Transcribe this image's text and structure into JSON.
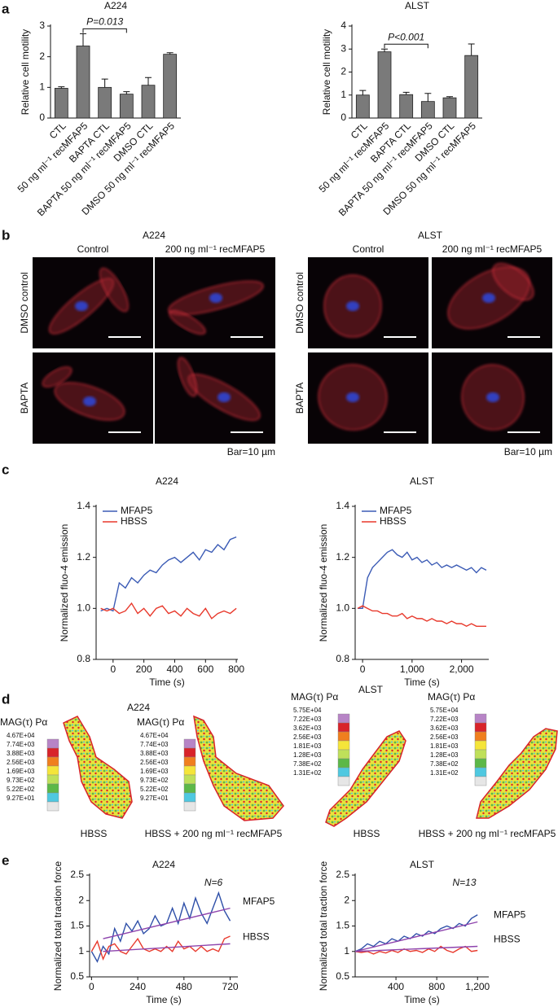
{
  "panel_labels": [
    "a",
    "b",
    "c",
    "d",
    "e"
  ],
  "chart_data": [
    {
      "type": "bar",
      "title": "A224",
      "ylabel": "Relative cell motility",
      "categories": [
        "CTL",
        "50 ng ml⁻¹ recMFAP5",
        "BAPTA CTL",
        "BAPTA 50 ng ml⁻¹ recMFAP5",
        "DMSO CTL",
        "DMSO 50 ng ml⁻¹ recMFAP5"
      ],
      "values": [
        0.97,
        2.35,
        1.0,
        0.78,
        1.07,
        2.08
      ],
      "errors": [
        0.05,
        0.4,
        0.27,
        0.08,
        0.25,
        0.05
      ],
      "color": "#7a7a7a",
      "ylim": [
        0,
        3
      ],
      "yticks": [
        0,
        1,
        2,
        3
      ],
      "annotation": "P=0.013"
    },
    {
      "type": "bar",
      "title": "ALST",
      "ylabel": "Relative cell motility",
      "categories": [
        "CTL",
        "50 ng ml⁻¹ recMFAP5",
        "BAPTA CTL",
        "BAPTA 50 ng ml⁻¹ recMFAP5",
        "DMSO CTL",
        "DMSO 50 ng ml⁻¹ recMFAP5"
      ],
      "values": [
        1.0,
        2.88,
        1.02,
        0.72,
        0.88,
        2.72
      ],
      "errors": [
        0.2,
        0.12,
        0.1,
        0.35,
        0.05,
        0.5
      ],
      "color": "#7a7a7a",
      "ylim": [
        0,
        4
      ],
      "yticks": [
        0,
        1,
        2,
        3,
        4
      ],
      "annotation": "P<0.001"
    },
    {
      "type": "line",
      "title": "A224",
      "xlabel": "Time (s)",
      "ylabel": "Normalized fluo-4 emission",
      "x": [
        -80,
        -40,
        0,
        40,
        80,
        120,
        160,
        200,
        240,
        280,
        320,
        360,
        400,
        440,
        480,
        520,
        560,
        600,
        640,
        680,
        720,
        760,
        800
      ],
      "series": [
        {
          "name": "MFAP5",
          "color": "#3b5bb5",
          "values": [
            0.99,
            1.0,
            0.99,
            1.1,
            1.08,
            1.12,
            1.1,
            1.13,
            1.15,
            1.14,
            1.17,
            1.19,
            1.2,
            1.18,
            1.2,
            1.22,
            1.19,
            1.23,
            1.22,
            1.25,
            1.23,
            1.27,
            1.28
          ]
        },
        {
          "name": "HBSS",
          "color": "#e8392c",
          "values": [
            1.0,
            0.99,
            1.0,
            0.98,
            0.99,
            1.02,
            0.98,
            1.0,
            0.97,
            1.0,
            1.01,
            0.98,
            0.99,
            0.97,
            1.0,
            0.98,
            0.97,
            1.0,
            0.96,
            0.98,
            0.99,
            0.98,
            1.0
          ]
        }
      ],
      "xlim": [
        -110,
        810
      ],
      "xticks": [
        0,
        200,
        400,
        600,
        800
      ],
      "ylim": [
        0.8,
        1.4
      ],
      "yticks": [
        0.8,
        {
          "value": 1,
          "label": "1.0"
        },
        1.2,
        1.4
      ],
      "legend": "upper left"
    },
    {
      "type": "line",
      "title": "ALST",
      "xlabel": "Time (s)",
      "ylabel": "Normalized fluo-4 emission",
      "x": [
        -100,
        0,
        100,
        200,
        300,
        400,
        500,
        600,
        700,
        800,
        900,
        1000,
        1100,
        1200,
        1300,
        1400,
        1500,
        1600,
        1700,
        1800,
        1900,
        2000,
        2100,
        2200,
        2300,
        2400,
        2500
      ],
      "series": [
        {
          "name": "MFAP5",
          "color": "#3b5bb5",
          "values": [
            1.0,
            1.0,
            1.12,
            1.16,
            1.18,
            1.2,
            1.22,
            1.23,
            1.21,
            1.2,
            1.22,
            1.19,
            1.2,
            1.18,
            1.19,
            1.17,
            1.18,
            1.16,
            1.17,
            1.16,
            1.17,
            1.16,
            1.15,
            1.16,
            1.14,
            1.16,
            1.15
          ]
        },
        {
          "name": "HBSS",
          "color": "#e8392c",
          "values": [
            1.0,
            1.01,
            1.0,
            0.99,
            0.99,
            0.98,
            0.98,
            0.97,
            0.97,
            0.98,
            0.96,
            0.97,
            0.96,
            0.96,
            0.95,
            0.96,
            0.95,
            0.95,
            0.94,
            0.95,
            0.94,
            0.94,
            0.93,
            0.94,
            0.93,
            0.93,
            0.93
          ]
        }
      ],
      "xlim": [
        -150,
        2550
      ],
      "xticks": [
        0,
        {
          "value": 1000,
          "label": "1,000"
        },
        {
          "value": 2000,
          "label": "2,000"
        }
      ],
      "ylim": [
        0.8,
        1.4
      ],
      "yticks": [
        0.8,
        {
          "value": 1,
          "label": "1.0"
        },
        1.2,
        1.4
      ],
      "legend": "upper left"
    },
    {
      "type": "line",
      "title": "A224",
      "xlabel": "Time (s)",
      "ylabel": "Normalized total traction force",
      "x": [
        0,
        30,
        60,
        90,
        120,
        150,
        180,
        210,
        240,
        270,
        300,
        330,
        360,
        390,
        420,
        450,
        480,
        510,
        540,
        570,
        600,
        630,
        660,
        690,
        720
      ],
      "series": [
        {
          "name": "MFAP5",
          "color": "#2e4fa8",
          "values": [
            1,
            0.8,
            1.1,
            0.95,
            1.45,
            1.2,
            1.55,
            1.4,
            1.6,
            1.35,
            1.45,
            1.7,
            1.5,
            1.55,
            1.85,
            1.55,
            1.95,
            1.65,
            2.05,
            1.75,
            1.55,
            1.85,
            2.15,
            1.8,
            1.6
          ],
          "trend": {
            "x": [
              60,
              720
            ],
            "values": [
              1.25,
              1.85
            ]
          }
        },
        {
          "name": "HBSS",
          "color": "#e8392c",
          "values": [
            1,
            1.2,
            0.85,
            1.1,
            1.15,
            1.0,
            0.95,
            1.1,
            1.25,
            1.05,
            1.0,
            1.05,
            1.0,
            1.1,
            1.0,
            1.2,
            1.05,
            1.1,
            1.0,
            1.1,
            1.0,
            1.05,
            1.0,
            1.25,
            1.3
          ],
          "trend": {
            "x": [
              60,
              720
            ],
            "values": [
              1.0,
              1.15
            ]
          }
        }
      ],
      "trend_color": "#8e44ad",
      "xlim": [
        -10,
        760
      ],
      "xticks": [
        0,
        240,
        480,
        720
      ],
      "ylim": [
        0.5,
        2.5
      ],
      "yticks": [
        0.5,
        1,
        1.5,
        2,
        2.5
      ],
      "legend": "right",
      "annotation": "N=6"
    },
    {
      "type": "line",
      "title": "ALST",
      "xlabel": "Time (s)",
      "ylabel": "Normalized total traction force",
      "x": [
        0,
        60,
        120,
        180,
        240,
        300,
        360,
        420,
        480,
        540,
        600,
        660,
        720,
        780,
        840,
        900,
        960,
        1020,
        1080,
        1140,
        1200
      ],
      "series": [
        {
          "name": "MFAP5",
          "color": "#2e4fa8",
          "values": [
            1,
            1.05,
            1.15,
            1.1,
            1.2,
            1.15,
            1.25,
            1.2,
            1.3,
            1.25,
            1.35,
            1.3,
            1.4,
            1.35,
            1.45,
            1.5,
            1.45,
            1.55,
            1.5,
            1.65,
            1.72
          ],
          "trend": {
            "x": [
              0,
              1200
            ],
            "values": [
              1.0,
              1.58
            ]
          }
        },
        {
          "name": "HBSS",
          "color": "#e8392c",
          "values": [
            1,
            0.98,
            1.0,
            0.95,
            1.0,
            0.97,
            1.02,
            0.98,
            1.05,
            1.0,
            1.02,
            0.98,
            1.05,
            1.0,
            1.1,
            1.02,
            0.98,
            1.05,
            1.1,
            1.0,
            1.02
          ],
          "trend": {
            "x": [
              0,
              1200
            ],
            "values": [
              1.0,
              1.1
            ]
          }
        }
      ],
      "trend_color": "#8e44ad",
      "xlim": [
        0,
        1310
      ],
      "xticks": [
        400,
        800,
        {
          "value": 1200,
          "label": "1,200"
        }
      ],
      "ylim": [
        0.5,
        2.5
      ],
      "yticks": [
        0.5,
        1,
        1.5,
        2,
        2.5
      ],
      "legend": "right",
      "annotation": "N=13"
    }
  ],
  "microscopy": {
    "groups": [
      {
        "title": "A224",
        "columns": [
          "Control",
          "200 ng ml⁻¹ recMFAP5"
        ],
        "rows": [
          "DMSO control",
          "BAPTA"
        ],
        "scale_note": "Bar=10 µm"
      },
      {
        "title": "ALST",
        "columns": [
          "Control",
          "200 ng ml⁻¹ recMFAP5"
        ],
        "rows": [
          "DMSO control",
          "BAPTA"
        ],
        "scale_note": "Bar=10 µm"
      }
    ]
  },
  "traction_maps": {
    "groups": [
      {
        "title": "A224",
        "scale_title": "MAG(τ) Pα",
        "scale_labels": [
          "4.67E+04",
          "7.74E+03",
          "3.88E+03",
          "2.56E+03",
          "1.69E+03",
          "9.73E+02",
          "5.22E+02",
          "9.27E+01"
        ],
        "maps": [
          {
            "label": "HBSS"
          },
          {
            "label": "HBSS + 200 ng ml⁻¹ recMFAP5"
          }
        ]
      },
      {
        "title": "ALST",
        "scale_title": "MAG(τ) Pα",
        "scale_labels": [
          "5.75E+04",
          "7.22E+03",
          "3.62E+03",
          "2.56E+03",
          "1.81E+03",
          "1.28E+03",
          "7.38E+02",
          "1.31E+02"
        ],
        "maps": [
          {
            "label": "HBSS"
          },
          {
            "label": "HBSS + 200 ng ml⁻¹ recMFAP5"
          }
        ]
      }
    ]
  }
}
